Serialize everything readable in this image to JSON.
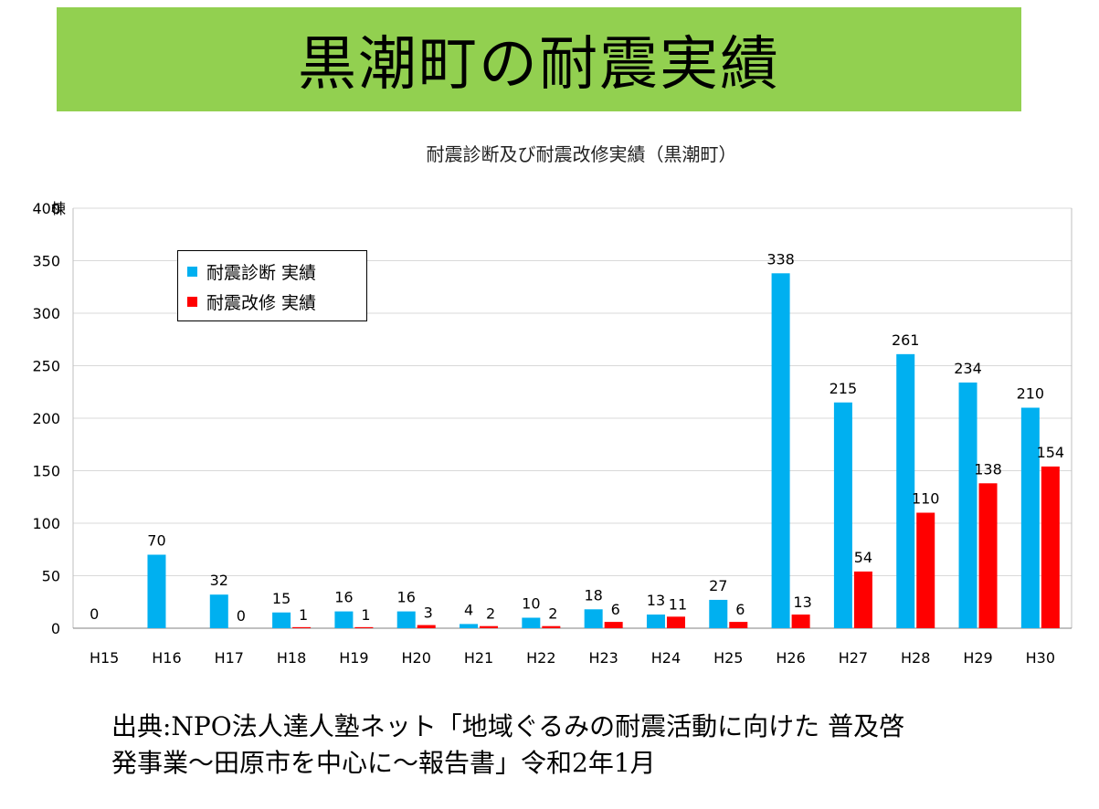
{
  "banner": {
    "title": "黒潮町の耐震実績"
  },
  "source": {
    "line1": "出典:NPO法人達人塾ネット「地域ぐるみの耐震活動に向けた 普及啓",
    "line2": "発事業〜田原市を中心に〜報告書」令和2年1月"
  },
  "colors": {
    "banner": "#92d050",
    "diagnosis": "#00b0f0",
    "retrofit": "#ff0000",
    "grid": "#d9d9d9"
  },
  "chart_data": {
    "type": "bar",
    "title": "耐震診断及び耐震改修実績（黒潮町）",
    "yunit": "棟",
    "ylim": [
      0,
      400
    ],
    "yticks": [
      0,
      50,
      100,
      150,
      200,
      250,
      300,
      350,
      400
    ],
    "grid": true,
    "legend_position": "top-left",
    "categories": [
      "H15",
      "H16",
      "H17",
      "H18",
      "H19",
      "H20",
      "H21",
      "H22",
      "H23",
      "H24",
      "H25",
      "H26",
      "H27",
      "H28",
      "H29",
      "H30"
    ],
    "series": [
      {
        "name": "耐震診断 実績",
        "color": "#00b0f0",
        "values": [
          0,
          70,
          32,
          15,
          16,
          16,
          4,
          10,
          18,
          13,
          27,
          338,
          215,
          261,
          234,
          210
        ]
      },
      {
        "name": "耐震改修 実績",
        "color": "#ff0000",
        "values": [
          null,
          null,
          0,
          1,
          1,
          3,
          2,
          2,
          6,
          11,
          6,
          13,
          54,
          110,
          138,
          154
        ]
      }
    ]
  }
}
